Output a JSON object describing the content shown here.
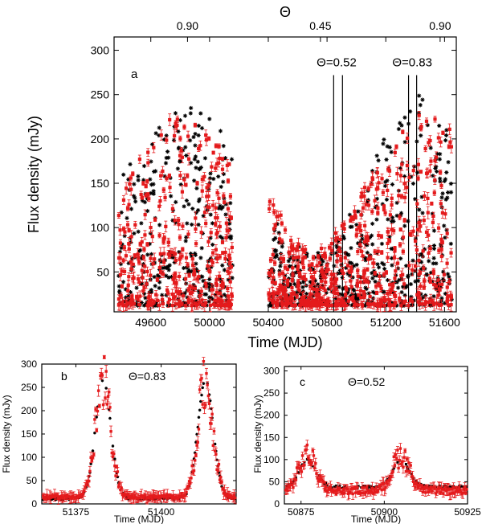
{
  "chart_data": [
    {
      "panel": "a",
      "type": "scatter",
      "xlabel": "Time (MJD)",
      "ylabel": "Flux density (mJy)",
      "top_axis_label": "Θ",
      "xlim": [
        49350,
        51680
      ],
      "ylim": [
        5,
        315
      ],
      "xticks": [
        49600,
        50000,
        50400,
        50800,
        51200,
        51600
      ],
      "yticks": [
        50,
        100,
        150,
        200,
        250,
        300
      ],
      "top_ticks": [
        {
          "x": 49850,
          "label": "0.90"
        },
        {
          "x": 50755,
          "label": "0.45"
        },
        {
          "x": 51570,
          "label": "0.90"
        }
      ],
      "vertical_lines": [
        50845,
        50905,
        51355,
        51410
      ],
      "annotations": [
        {
          "x": 50865,
          "y": 282,
          "text": "Θ=0.52"
        },
        {
          "x": 51380,
          "y": 282,
          "text": "Θ=0.83"
        }
      ],
      "series": [
        {
          "marker": "asterisk",
          "color": "#000000",
          "segments": [
            [
              49380,
              50160
            ],
            [
              50400,
              51650
            ]
          ],
          "envelope": [
            [
              49380,
              150
            ],
            [
              49450,
              175
            ],
            [
              49550,
              200
            ],
            [
              49650,
              218
            ],
            [
              49750,
              232
            ],
            [
              49850,
              238
            ],
            [
              49950,
              232
            ],
            [
              50050,
              215
            ],
            [
              50120,
              200
            ],
            [
              50160,
              185
            ],
            [
              50400,
              125
            ],
            [
              50500,
              95
            ],
            [
              50600,
              80
            ],
            [
              50700,
              70
            ],
            [
              50800,
              75
            ],
            [
              50900,
              100
            ],
            [
              51000,
              140
            ],
            [
              51100,
              180
            ],
            [
              51200,
              215
            ],
            [
              51300,
              240
            ],
            [
              51400,
              255
            ],
            [
              51500,
              250
            ],
            [
              51600,
              230
            ],
            [
              51650,
              215
            ]
          ]
        },
        {
          "marker": "square-errorbar",
          "color": "#e41a1c",
          "segments": [
            [
              49380,
              50160
            ],
            [
              50400,
              51650
            ]
          ],
          "envelope": [
            [
              49380,
              140
            ],
            [
              49450,
              160
            ],
            [
              49550,
              185
            ],
            [
              49650,
              215
            ],
            [
              49750,
              225
            ],
            [
              49850,
              222
            ],
            [
              49950,
              210
            ],
            [
              50050,
              195
            ],
            [
              50120,
              180
            ],
            [
              50160,
              165
            ],
            [
              50400,
              170
            ],
            [
              50500,
              105
            ],
            [
              50600,
              85
            ],
            [
              50700,
              75
            ],
            [
              50800,
              80
            ],
            [
              50900,
              105
            ],
            [
              51000,
              130
            ],
            [
              51100,
              160
            ],
            [
              51200,
              185
            ],
            [
              51300,
              205
            ],
            [
              51400,
              225
            ],
            [
              51500,
              235
            ],
            [
              51600,
              240
            ],
            [
              51650,
              245
            ]
          ]
        }
      ]
    },
    {
      "panel": "b",
      "type": "scatter",
      "xlabel": "Time (MJD)",
      "ylabel": "Flux density (mJy)",
      "xlim": [
        51365,
        51422
      ],
      "ylim": [
        0,
        300
      ],
      "xticks": [
        51375,
        51400
      ],
      "yticks": [
        0,
        50,
        100,
        150,
        200,
        250,
        300
      ],
      "annotation": "Θ=0.83",
      "peaks": [
        51383,
        51413
      ],
      "series": [
        {
          "marker": "asterisk",
          "color": "#000000",
          "peak_height": 265,
          "baseline": 12
        },
        {
          "marker": "square-errorbar",
          "color": "#e41a1c",
          "peak_height": 255,
          "baseline": 15
        }
      ]
    },
    {
      "panel": "c",
      "type": "scatter",
      "xlabel": "Time (MJD)",
      "ylabel": "Flux density (mJy)",
      "xlim": [
        50870,
        50925
      ],
      "ylim": [
        0,
        310
      ],
      "xticks": [
        50875,
        50900,
        50925
      ],
      "yticks": [
        0,
        50,
        100,
        150,
        200,
        250,
        300
      ],
      "annotation": "Θ=0.52",
      "peaks": [
        50877,
        50905
      ],
      "series": [
        {
          "marker": "square",
          "color": "#000000",
          "peak_height": 98,
          "baseline": 38
        },
        {
          "marker": "square-errorbar",
          "color": "#e41a1c",
          "peak_height": 110,
          "baseline": 30
        }
      ]
    }
  ],
  "panel_labels": {
    "a": "a",
    "b": "b",
    "c": "c"
  }
}
